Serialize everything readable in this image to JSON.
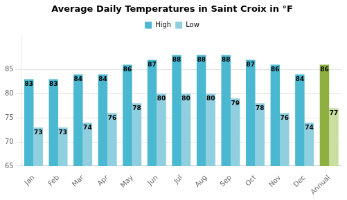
{
  "chart_data": {
    "type": "bar",
    "title": "Average Daily Temperatures in Saint Croix in °F",
    "categories": [
      "Jan",
      "Feb",
      "Mar",
      "Apr",
      "May",
      "Jun",
      "Jul",
      "Aug",
      "Sep",
      "Oct",
      "Nov",
      "Dec",
      "Annual"
    ],
    "series": [
      {
        "name": "High",
        "colors": [
          "#4ab8d0",
          "#4ab8d0",
          "#4ab8d0",
          "#4ab8d0",
          "#4ab8d0",
          "#4ab8d0",
          "#4ab8d0",
          "#4ab8d0",
          "#4ab8d0",
          "#4ab8d0",
          "#4ab8d0",
          "#4ab8d0",
          "#8db040"
        ],
        "values": [
          83,
          83,
          84,
          84,
          86,
          87,
          88,
          88,
          88,
          87,
          86,
          84,
          86
        ]
      },
      {
        "name": "Low",
        "colors": [
          "#90cfe0",
          "#90cfe0",
          "#90cfe0",
          "#90cfe0",
          "#90cfe0",
          "#90cfe0",
          "#90cfe0",
          "#90cfe0",
          "#90cfe0",
          "#90cfe0",
          "#90cfe0",
          "#90cfe0",
          "#c8dfa0"
        ],
        "values": [
          73,
          73,
          74,
          76,
          78,
          80,
          80,
          80,
          79,
          78,
          76,
          74,
          77
        ]
      }
    ],
    "ylim": [
      65,
      92
    ],
    "yticks": [
      65,
      70,
      75,
      80,
      85
    ],
    "grid": true,
    "legend": "top",
    "data_labels": true
  }
}
